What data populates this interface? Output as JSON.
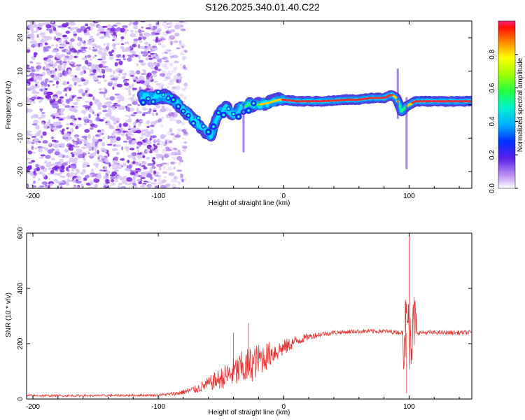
{
  "title": "S126.2025.340.01.40.C22",
  "colors": {
    "snr_line": "#e8302c",
    "ridge_core": "#e8303a",
    "ridge_mid": "#00e0ff",
    "ridge_outer": "#3a2bd8",
    "scatter": "#8a2be2"
  },
  "chart_data": [
    {
      "type": "heatmap",
      "name": "spectrogram",
      "xlabel": "Height of straight line (km)",
      "ylabel": "Frequency (Hz)",
      "xlim": [
        -205,
        150
      ],
      "ylim": [
        -25,
        25
      ],
      "xticks": [
        -200,
        -100,
        0,
        100
      ],
      "yticks": [
        -20,
        -10,
        0,
        10,
        20
      ],
      "colorbar": {
        "label": "Normalized spectral amplitude",
        "range": [
          0,
          1
        ],
        "ticks": [
          "0.0",
          "0.2",
          "0.4",
          "0.6",
          "0.8"
        ],
        "tick_values": [
          0.0,
          0.2,
          0.4,
          0.6,
          0.8
        ]
      },
      "ridge": {
        "x": [
          -113,
          -105,
          -95,
          -85,
          -78,
          -70,
          -62,
          -58,
          -52,
          -46,
          -40,
          -34,
          -28,
          -20,
          -12,
          -4,
          0,
          10,
          20,
          30,
          40,
          50,
          60,
          70,
          80,
          86,
          90,
          94,
          98,
          105,
          115,
          130,
          150
        ],
        "y": [
          2.5,
          2,
          2.5,
          0.5,
          -2,
          -5,
          -8,
          -9.5,
          -3,
          -1,
          -3,
          -1,
          0,
          0,
          0.5,
          1.5,
          1.5,
          1,
          1,
          1,
          1.2,
          1.5,
          1.5,
          2,
          2,
          3,
          2,
          -2,
          -0.5,
          1,
          1,
          1,
          1
        ],
        "amplitude": [
          0.3,
          0.4,
          0.35,
          0.3,
          0.3,
          0.25,
          0.2,
          0.25,
          0.3,
          0.35,
          0.3,
          0.4,
          0.5,
          0.6,
          0.7,
          0.75,
          0.85,
          0.95,
          0.95,
          0.95,
          0.9,
          0.9,
          0.9,
          0.95,
          0.95,
          0.85,
          0.7,
          0.5,
          0.6,
          0.9,
          0.9,
          0.85,
          0.85
        ]
      },
      "spikes": [
        {
          "x": 91,
          "y_from": -4,
          "y_to": 10.5
        },
        {
          "x": 98,
          "y_from": -19,
          "y_to": 2
        },
        {
          "x": -32,
          "y_from": -14,
          "y_to": 0
        }
      ],
      "noise_region_x": [
        -205,
        -78
      ],
      "dense_noise_region_x": [
        -205,
        -100
      ]
    },
    {
      "type": "line",
      "name": "snr",
      "xlabel": "Height of straight line (km)",
      "ylabel": "SNR (10 * v/v)",
      "xlim": [
        -205,
        150
      ],
      "ylim": [
        0,
        600
      ],
      "xticks": [
        -200,
        -100,
        0,
        100
      ],
      "yticks": [
        0,
        200,
        400,
        600
      ],
      "series": [
        {
          "name": "SNR",
          "envelope_x": [
            -205,
            -150,
            -100,
            -85,
            -70,
            -60,
            -50,
            -40,
            -30,
            -20,
            -10,
            0,
            10,
            20,
            30,
            40,
            60,
            80,
            95,
            100,
            105,
            120,
            150
          ],
          "envelope_y": [
            12,
            12,
            14,
            20,
            35,
            55,
            75,
            95,
            115,
            140,
            165,
            185,
            210,
            225,
            235,
            240,
            245,
            245,
            240,
            238,
            240,
            240,
            240
          ],
          "noise_amp": [
            4,
            4,
            4,
            8,
            15,
            25,
            40,
            55,
            70,
            60,
            45,
            30,
            20,
            12,
            10,
            8,
            8,
            8,
            8,
            8,
            8,
            8,
            8
          ],
          "peaks": [
            {
              "x": -28,
              "y": 275
            },
            {
              "x": -40,
              "y": 240
            },
            {
              "x": 100,
              "y": 600
            },
            {
              "x": 98,
              "y": 20
            },
            {
              "x": 104,
              "y": 370
            },
            {
              "x": 97,
              "y": 360
            }
          ]
        }
      ]
    }
  ]
}
